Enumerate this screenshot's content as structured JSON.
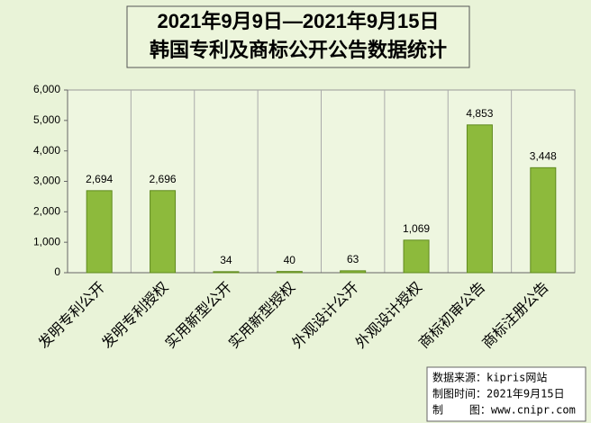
{
  "chart_data": {
    "type": "bar",
    "title_lines": [
      "2021年9月9日—2021年9月15日",
      "韩国专利及商标公开公告数据统计"
    ],
    "categories": [
      "发明专利公开",
      "发明专利授权",
      "实用新型公开",
      "实用新型授权",
      "外观设计公开",
      "外观设计授权",
      "商标初审公告",
      "商标注册公告"
    ],
    "values": [
      2694,
      2696,
      34,
      40,
      63,
      1069,
      4853,
      3448
    ],
    "value_labels": [
      "2,694",
      "2,696",
      "34",
      "40",
      "63",
      "1,069",
      "4,853",
      "3,448"
    ],
    "color": "#8dba3c",
    "ylim": [
      0,
      6000
    ],
    "yticks": [
      0,
      {
        "value": 1000,
        "label": "1,000"
      },
      {
        "value": 2000,
        "label": "2,000"
      },
      {
        "value": 3000,
        "label": "3,000"
      },
      {
        "value": 4000,
        "label": "4,000"
      },
      {
        "value": 5000,
        "label": "5,000"
      },
      {
        "value": 6000,
        "label": "6,000"
      }
    ],
    "notes": [
      "数据来源：kipris网站",
      "制图时间：2021年9月15日",
      "制    图：www.cnipr.com"
    ]
  }
}
